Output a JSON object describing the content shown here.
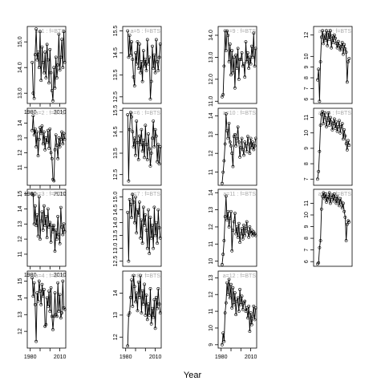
{
  "xlabel": "Year",
  "chart_data": [
    {
      "type": "line",
      "col": 0,
      "row": 0,
      "facet_label": "a=1 : f=BTS",
      "ylim": [
        12.6,
        15.6
      ],
      "yticks": [
        "13.0",
        "14.0",
        "15.0"
      ],
      "xticks": [
        "1980",
        "2010"
      ],
      "xlim": [
        1977,
        2016
      ],
      "x": [
        1982,
        1983,
        1984,
        1985,
        1986,
        1987,
        1988,
        1989,
        1990,
        1991,
        1992,
        1993,
        1994,
        1995,
        1996,
        1997,
        1998,
        1999,
        2000,
        2001,
        2002,
        2003,
        2004,
        2005,
        2006,
        2007,
        2008,
        2009,
        2010,
        2011,
        2012,
        2013,
        2014,
        2015
      ],
      "y": [
        14.2,
        13.0,
        12.8,
        14.5,
        15.5,
        14.3,
        14.6,
        14.0,
        15.4,
        13.5,
        14.8,
        14.2,
        13.8,
        14.6,
        13.6,
        14.9,
        14.3,
        13.4,
        14.7,
        13.8,
        13.1,
        12.7,
        14.0,
        13.2,
        14.4,
        13.6,
        14.1,
        15.3,
        13.9,
        14.4,
        15.1,
        14.0,
        15.4,
        14.2
      ]
    },
    {
      "type": "line",
      "col": 0,
      "row": 1,
      "facet_label": "a=2 : f=BTS",
      "ylim": [
        9.8,
        15.0
      ],
      "yticks": [
        "11",
        "12",
        "13",
        "14"
      ],
      "xticks": [
        "1980",
        "2010"
      ],
      "xlim": [
        1977,
        2016
      ],
      "x": [
        1982,
        1983,
        1984,
        1985,
        1986,
        1987,
        1988,
        1989,
        1990,
        1991,
        1992,
        1993,
        1994,
        1995,
        1996,
        1997,
        1998,
        1999,
        2000,
        2001,
        2002,
        2003,
        2004,
        2005,
        2006,
        2007,
        2008,
        2009,
        2010,
        2011,
        2012,
        2013,
        2014,
        2015
      ],
      "y": [
        13.5,
        14.5,
        13.2,
        13.6,
        12.4,
        13.4,
        11.8,
        12.9,
        13.7,
        13.3,
        13.8,
        12.6,
        13.4,
        12.2,
        13.0,
        12.7,
        13.5,
        12.3,
        13.6,
        12.0,
        11.6,
        10.2,
        10.1,
        12.2,
        13.2,
        12.5,
        11.6,
        13.0,
        12.4,
        12.9,
        13.4,
        12.6,
        13.3,
        12.9
      ]
    },
    {
      "type": "line",
      "col": 0,
      "row": 2,
      "facet_label": "a=3 : f=BTS",
      "ylim": [
        10.2,
        15.3
      ],
      "yticks": [
        "11",
        "12",
        "13",
        "14",
        "15"
      ],
      "xticks": [
        "1980",
        "2010"
      ],
      "xlim": [
        1977,
        2016
      ],
      "x": [
        1982,
        1983,
        1984,
        1985,
        1986,
        1987,
        1988,
        1989,
        1990,
        1991,
        1992,
        1993,
        1994,
        1995,
        1996,
        1997,
        1998,
        1999,
        2000,
        2001,
        2002,
        2003,
        2004,
        2005,
        2006,
        2007,
        2008,
        2009,
        2010,
        2011,
        2012,
        2013,
        2014,
        2015
      ],
      "y": [
        15.0,
        14.9,
        13.0,
        14.2,
        12.9,
        13.6,
        12.2,
        14.8,
        12.0,
        13.2,
        13.8,
        12.6,
        14.2,
        12.9,
        13.5,
        12.1,
        14.0,
        12.8,
        13.1,
        11.8,
        12.9,
        12.5,
        12.9,
        11.2,
        12.6,
        12.0,
        13.5,
        12.3,
        11.7,
        14.1,
        12.8,
        12.3,
        13.0,
        12.5
      ]
    },
    {
      "type": "line",
      "col": 0,
      "row": 3,
      "facet_label": "a=4 : f=BTS",
      "ylim": [
        11.0,
        15.6
      ],
      "yticks": [
        "12",
        "13",
        "14",
        "15"
      ],
      "xticks": [
        "1980",
        "2010"
      ],
      "xlim": [
        1977,
        2016
      ],
      "x": [
        1982,
        1983,
        1984,
        1985,
        1986,
        1987,
        1988,
        1989,
        1990,
        1991,
        1992,
        1993,
        1994,
        1995,
        1996,
        1997,
        1998,
        1999,
        2000,
        2001,
        2002,
        2003,
        2004,
        2005,
        2006,
        2007,
        2008,
        2009,
        2010,
        2011,
        2012,
        2013,
        2014,
        2015
      ],
      "y": [
        15.2,
        14.1,
        14.9,
        13.6,
        11.4,
        14.3,
        13.8,
        15.0,
        14.4,
        13.6,
        14.8,
        14.1,
        14.5,
        12.3,
        12.4,
        14.0,
        13.5,
        14.4,
        13.2,
        14.6,
        12.9,
        12.1,
        12.9,
        14.3,
        13.0,
        12.9,
        14.9,
        13.2,
        14.2,
        12.8,
        13.1,
        15.0,
        13.4,
        13.3
      ]
    },
    {
      "type": "line",
      "col": 1,
      "row": 0,
      "facet_label": "a=5 : f=BTS",
      "ylim": [
        12.2,
        15.7
      ],
      "yticks": [
        "12.5",
        "13.5",
        "14.5",
        "15.5"
      ],
      "xticks": [],
      "xlim": [
        1977,
        2016
      ],
      "x": [
        1982,
        1983,
        1984,
        1985,
        1986,
        1987,
        1988,
        1989,
        1990,
        1991,
        1992,
        1993,
        1994,
        1995,
        1996,
        1997,
        1998,
        1999,
        2000,
        2001,
        2002,
        2003,
        2004,
        2005,
        2006,
        2007,
        2008,
        2009,
        2010,
        2011,
        2012,
        2013,
        2014,
        2015
      ],
      "y": [
        15.5,
        14.3,
        15.3,
        14.4,
        15.0,
        14.2,
        13.4,
        13.0,
        14.5,
        14.0,
        15.0,
        13.8,
        14.9,
        13.6,
        14.1,
        13.2,
        14.6,
        13.9,
        14.2,
        13.7,
        15.1,
        14.0,
        14.3,
        12.4,
        13.2,
        14.8,
        13.8,
        14.4,
        13.6,
        15.1,
        14.1,
        13.7,
        14.3,
        14.9
      ]
    },
    {
      "type": "line",
      "col": 1,
      "row": 1,
      "facet_label": "a=6 : f=BTS",
      "ylim": [
        12.0,
        15.6
      ],
      "yticks": [
        "12.5",
        "13.5",
        "14.5",
        "15.5"
      ],
      "xticks": [],
      "xlim": [
        1977,
        2016
      ],
      "x": [
        1982,
        1983,
        1984,
        1985,
        1986,
        1987,
        1988,
        1989,
        1990,
        1991,
        1992,
        1993,
        1994,
        1995,
        1996,
        1997,
        1998,
        1999,
        2000,
        2001,
        2002,
        2003,
        2004,
        2005,
        2006,
        2007,
        2008,
        2009,
        2010,
        2011,
        2012,
        2013,
        2014,
        2015
      ],
      "y": [
        15.3,
        12.2,
        14.6,
        15.4,
        15.2,
        14.5,
        13.8,
        14.2,
        13.4,
        15.0,
        14.0,
        13.2,
        14.3,
        13.9,
        14.6,
        13.6,
        14.1,
        13.3,
        14.8,
        13.9,
        13.2,
        14.4,
        13.7,
        12.9,
        13.5,
        14.2,
        15.0,
        13.8,
        14.6,
        14.3,
        13.1,
        13.9,
        13.0,
        13.8
      ]
    },
    {
      "type": "line",
      "col": 1,
      "row": 2,
      "facet_label": "a=7 : f=BTS",
      "ylim": [
        12.3,
        15.3
      ],
      "yticks": [
        "12.5",
        "13.0",
        "13.5",
        "14.0",
        "14.5",
        "15.0"
      ],
      "xticks": [],
      "xlim": [
        1977,
        2016
      ],
      "x": [
        1982,
        1983,
        1984,
        1985,
        1986,
        1987,
        1988,
        1989,
        1990,
        1991,
        1992,
        1993,
        1994,
        1995,
        1996,
        1997,
        1998,
        1999,
        2000,
        2001,
        2002,
        2003,
        2004,
        2005,
        2006,
        2007,
        2008,
        2009,
        2010,
        2011,
        2012,
        2013,
        2014,
        2015
      ],
      "y": [
        14.4,
        12.5,
        14.9,
        14.7,
        14.2,
        15.1,
        14.8,
        14.0,
        15.0,
        13.6,
        14.5,
        14.3,
        14.8,
        13.4,
        14.1,
        13.2,
        14.6,
        13.9,
        14.3,
        13.7,
        13.0,
        14.5,
        12.8,
        14.2,
        13.4,
        13.9,
        13.0,
        14.6,
        13.5,
        14.0,
        13.2,
        14.5,
        13.8,
        13.4
      ]
    },
    {
      "type": "line",
      "col": 1,
      "row": 3,
      "facet_label": "a=8 : f=BTS",
      "ylim": [
        11.5,
        15.0
      ],
      "yticks": [
        "12",
        "13",
        "14"
      ],
      "xticks": [
        "1980",
        "2010"
      ],
      "xlim": [
        1977,
        2016
      ],
      "x": [
        1982,
        1983,
        1984,
        1985,
        1986,
        1987,
        1988,
        1989,
        1990,
        1991,
        1992,
        1993,
        1994,
        1995,
        1996,
        1997,
        1998,
        1999,
        2000,
        2001,
        2002,
        2003,
        2004,
        2005,
        2006,
        2007,
        2008,
        2009,
        2010,
        2011,
        2012,
        2013,
        2014,
        2015
      ],
      "y": [
        11.6,
        13.0,
        13.1,
        13.8,
        14.6,
        13.4,
        14.8,
        14.3,
        13.6,
        14.0,
        13.2,
        14.5,
        13.8,
        14.8,
        13.1,
        14.1,
        13.5,
        14.4,
        13.0,
        13.9,
        12.8,
        13.5,
        13.0,
        14.2,
        12.6,
        13.3,
        12.9,
        13.7,
        12.4,
        13.8,
        13.3,
        14.2,
        13.5,
        13.1
      ]
    },
    {
      "type": "line",
      "col": 2,
      "row": 0,
      "facet_label": "a=9 : f=BTS",
      "ylim": [
        10.9,
        14.4
      ],
      "yticks": [
        "11.0",
        "12.0",
        "13.0",
        "14.0"
      ],
      "xticks": [],
      "xlim": [
        1977,
        2016
      ],
      "x": [
        1981,
        1982,
        1983,
        1984,
        1985,
        1986,
        1987,
        1988,
        1989,
        1990,
        1991,
        1992,
        1993,
        1994,
        1995,
        1996,
        1997,
        1998,
        1999,
        2000,
        2001,
        2002,
        2003,
        2004,
        2005,
        2006,
        2007,
        2008,
        2009,
        2010,
        2011,
        2012,
        2013,
        2014,
        2015
      ],
      "y": [
        11.2,
        11.3,
        12.6,
        14.2,
        13.3,
        14.2,
        14.0,
        12.8,
        13.6,
        12.2,
        13.3,
        12.3,
        13.0,
        11.6,
        13.1,
        12.5,
        13.4,
        12.0,
        12.9,
        12.9,
        13.2,
        12.6,
        12.7,
        12.1,
        13.7,
        12.8,
        13.2,
        12.5,
        13.0,
        12.7,
        13.5,
        13.0,
        14.1,
        12.6,
        13.4
      ]
    },
    {
      "type": "line",
      "col": 2,
      "row": 1,
      "facet_label": "a=10 : f=BTS",
      "ylim": [
        10.3,
        14.4
      ],
      "yticks": [
        "11",
        "12",
        "13",
        "14"
      ],
      "xticks": [],
      "xlim": [
        1977,
        2016
      ],
      "x": [
        1981,
        1982,
        1983,
        1984,
        1985,
        1986,
        1987,
        1988,
        1989,
        1990,
        1991,
        1992,
        1993,
        1994,
        1995,
        1996,
        1997,
        1998,
        1999,
        2000,
        2001,
        2002,
        2003,
        2004,
        2005,
        2006,
        2007,
        2008,
        2009,
        2010,
        2011,
        2012,
        2013,
        2014,
        2015
      ],
      "y": [
        10.4,
        11.0,
        11.6,
        12.5,
        14.1,
        13.2,
        12.8,
        13.6,
        12.6,
        12.4,
        12.0,
        11.3,
        12.9,
        13.0,
        12.4,
        12.8,
        13.4,
        12.6,
        11.8,
        12.3,
        12.8,
        12.2,
        11.9,
        12.6,
        12.4,
        12.1,
        12.9,
        12.5,
        12.0,
        12.8,
        12.3,
        12.6,
        12.2,
        12.4,
        12.8
      ]
    },
    {
      "type": "line",
      "col": 2,
      "row": 2,
      "facet_label": "a=11 : f=BTS",
      "ylim": [
        9.7,
        14.2
      ],
      "yticks": [
        "10",
        "11",
        "12",
        "13",
        "14"
      ],
      "xticks": [],
      "xlim": [
        1977,
        2016
      ],
      "x": [
        1981,
        1982,
        1983,
        1984,
        1985,
        1986,
        1987,
        1988,
        1989,
        1990,
        1991,
        1992,
        1993,
        1994,
        1995,
        1996,
        1997,
        1998,
        1999,
        2000,
        2001,
        2002,
        2003,
        2004,
        2005,
        2006,
        2007,
        2008,
        2009,
        2010,
        2011,
        2012,
        2013,
        2014,
        2015
      ],
      "y": [
        9.8,
        10.4,
        11.2,
        12.6,
        13.8,
        12.4,
        12.9,
        12.0,
        12.5,
        12.9,
        10.6,
        11.8,
        12.3,
        12.8,
        11.6,
        12.0,
        11.4,
        12.2,
        11.1,
        11.6,
        11.9,
        11.3,
        12.1,
        11.5,
        11.9,
        12.3,
        11.7,
        11.4,
        12.0,
        11.6,
        11.8,
        11.5,
        11.7,
        11.6,
        11.5
      ]
    },
    {
      "type": "line",
      "col": 2,
      "row": 3,
      "facet_label": "a=12 : f=BTS",
      "ylim": [
        8.8,
        13.4
      ],
      "yticks": [
        "9",
        "10",
        "11",
        "12",
        "13"
      ],
      "xticks": [
        "1980",
        "2010"
      ],
      "xlim": [
        1977,
        2016
      ],
      "x": [
        1981,
        1982,
        1983,
        1984,
        1985,
        1986,
        1987,
        1988,
        1989,
        1990,
        1991,
        1992,
        1993,
        1994,
        1995,
        1996,
        1997,
        1998,
        1999,
        2000,
        2001,
        2002,
        2003,
        2004,
        2005,
        2006,
        2007,
        2008,
        2009,
        2010,
        2011,
        2012,
        2013,
        2014,
        2015
      ],
      "y": [
        9.0,
        9.7,
        9.2,
        10.9,
        11.5,
        12.7,
        12.0,
        12.9,
        11.8,
        12.6,
        11.2,
        12.4,
        11.4,
        12.1,
        10.8,
        11.6,
        11.8,
        11.0,
        12.3,
        11.4,
        11.9,
        11.1,
        11.5,
        11.6,
        11.0,
        11.2,
        10.6,
        11.3,
        9.8,
        10.9,
        10.2,
        10.7,
        11.3,
        10.5,
        11.2
      ]
    },
    {
      "type": "line",
      "col": 3,
      "row": 0,
      "facet_label": "a=13 : f=BTS",
      "ylim": [
        5.6,
        12.8
      ],
      "yticks": [
        "6",
        "7",
        "8",
        "9",
        "10",
        "12"
      ],
      "xticks": [],
      "xlim": [
        1977,
        2016
      ],
      "x": [
        1981,
        1982,
        1983,
        1984,
        1985,
        1986,
        1987,
        1988,
        1989,
        1990,
        1991,
        1992,
        1993,
        1994,
        1995,
        1996,
        1997,
        1998,
        1999,
        2000,
        2001,
        2002,
        2003,
        2004,
        2005,
        2006,
        2007,
        2008,
        2009,
        2010,
        2011,
        2012,
        2013
      ],
      "y": [
        7.8,
        8.8,
        5.8,
        9.5,
        11.8,
        12.4,
        11.2,
        12.0,
        11.5,
        12.4,
        11.0,
        12.2,
        11.6,
        12.4,
        10.8,
        11.9,
        11.3,
        12.0,
        11.7,
        11.2,
        10.8,
        11.4,
        11.0,
        10.6,
        10.9,
        11.3,
        10.2,
        11.1,
        10.7,
        10.4,
        7.6,
        9.5,
        9.8
      ]
    },
    {
      "type": "line",
      "col": 3,
      "row": 1,
      "facet_label": "a=14 : f=BTS",
      "ylim": [
        6.6,
        11.6
      ],
      "yticks": [
        "7",
        "8",
        "9",
        "10",
        "11"
      ],
      "xticks": [],
      "xlim": [
        1977,
        2016
      ],
      "x": [
        1981,
        1982,
        1983,
        1984,
        1985,
        1986,
        1987,
        1988,
        1989,
        1990,
        1991,
        1992,
        1993,
        1994,
        1995,
        1996,
        1997,
        1998,
        1999,
        2000,
        2001,
        2002,
        2003,
        2004,
        2005,
        2006,
        2007,
        2008,
        2009,
        2010,
        2011,
        2012,
        2013
      ],
      "y": [
        7.0,
        7.5,
        8.8,
        10.5,
        11.2,
        11.4,
        10.6,
        11.3,
        11.0,
        10.4,
        10.8,
        11.3,
        10.5,
        11.0,
        10.7,
        10.2,
        10.6,
        10.9,
        10.3,
        10.7,
        10.1,
        10.4,
        10.8,
        10.0,
        10.4,
        10.6,
        9.6,
        10.2,
        9.8,
        9.3,
        8.9,
        9.5,
        9.2
      ]
    },
    {
      "type": "line",
      "col": 3,
      "row": 2,
      "facet_label": "a=15 : f=BTS",
      "ylim": [
        5.6,
        12.2
      ],
      "yticks": [
        "6",
        "7",
        "8",
        "9",
        "10",
        "11"
      ],
      "xticks": [],
      "xlim": [
        1977,
        2016
      ],
      "x": [
        1981,
        1982,
        1983,
        1984,
        1985,
        1986,
        1987,
        1988,
        1989,
        1990,
        1991,
        1992,
        1993,
        1994,
        1995,
        1996,
        1997,
        1998,
        1999,
        2000,
        2001,
        2002,
        2003,
        2004,
        2005,
        2006,
        2007,
        2008,
        2009,
        2010,
        2011,
        2012,
        2013
      ],
      "y": [
        5.8,
        5.9,
        7.2,
        7.8,
        10.5,
        11.6,
        11.9,
        11.4,
        11.8,
        11.1,
        11.6,
        11.3,
        11.9,
        11.0,
        11.5,
        11.7,
        11.2,
        11.8,
        11.4,
        11.0,
        11.6,
        11.2,
        10.8,
        11.4,
        11.1,
        10.6,
        11.0,
        10.3,
        9.8,
        7.8,
        9.2,
        9.5,
        9.4
      ]
    }
  ]
}
